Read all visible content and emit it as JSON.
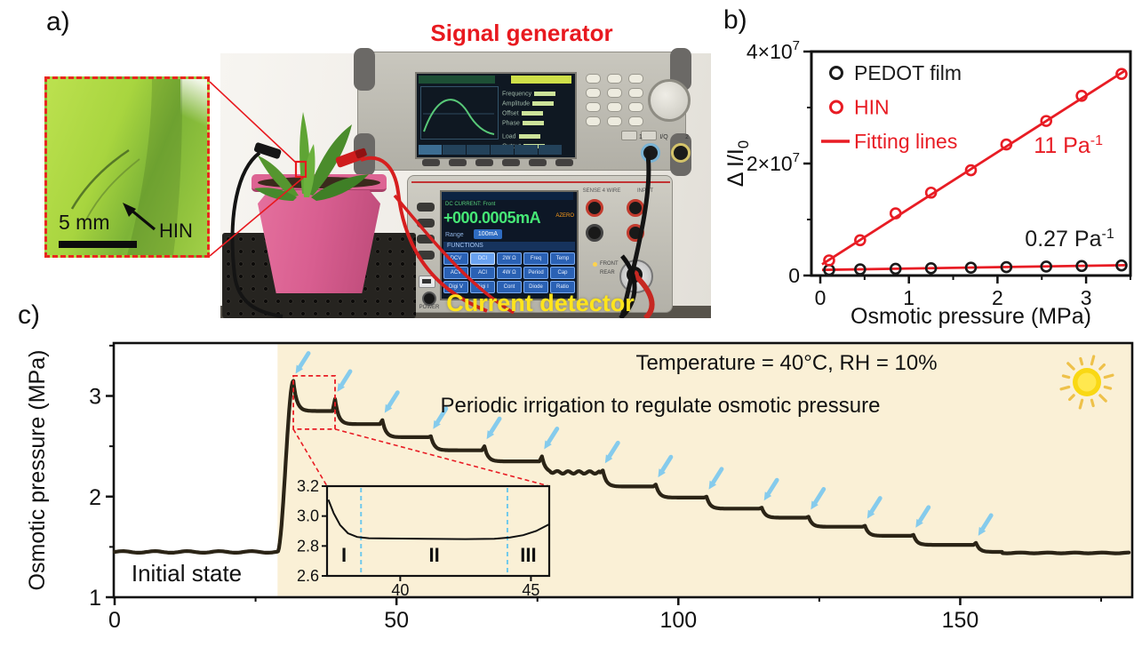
{
  "colors": {
    "red": "#e81c24",
    "cream": "#faf0d6",
    "curve": "#2b2416",
    "arrow": "#85cbec",
    "inset_divider": "#6fc9ec",
    "sun_disk": "#f9d814",
    "sun_rays": "#eec14a",
    "yellow_label": "#ffe41c"
  },
  "panel_a": {
    "label": "a)",
    "signal_generator_label": "Signal generator",
    "current_detector_label": "Current detector",
    "inset": {
      "scale_bar": "5 mm",
      "annotation": "HIN"
    },
    "generator": {
      "screen_params": [
        "Frequency",
        "Amplitude",
        "Offset",
        "Phase"
      ],
      "screen_params2": [
        "Load",
        "Output"
      ],
      "jack_labels": [
        "1",
        "I/Q",
        "2"
      ]
    },
    "multimeter": {
      "status_mode": "DC CURRENT: Front",
      "reading": "+000.0005mA",
      "azero": "AZERO",
      "range_label": "Range",
      "range_value": "100mA",
      "functions_title": "FUNCTIONS",
      "buttons": [
        [
          "DCV",
          "DCI",
          "2W Ω",
          "Freq",
          "Temp"
        ],
        [
          "ACV",
          "ACI",
          "4W Ω",
          "Period",
          "Cap"
        ],
        [
          "Digi V",
          "Digi I",
          "Cont",
          "Diode",
          "Ratio"
        ]
      ],
      "active_button": "DCI",
      "jack_labels": [
        "SENSE 4 WIRE",
        "INPUT"
      ],
      "front_rear": [
        "FRONT",
        "REAR"
      ],
      "power_label": "POWER"
    }
  },
  "panel_b": {
    "label": "b)"
  },
  "panel_c": {
    "label": "c)"
  },
  "chart_data": [
    {
      "id": "panel_b",
      "type": "scatter",
      "xlabel": "Osmotic pressure (MPa)",
      "ylabel": "ΔI/I0",
      "ylabel_rich": [
        {
          "t": "Δ I/I"
        },
        {
          "sub": true,
          "t": "0"
        }
      ],
      "xlim": [
        0,
        3.5
      ],
      "ylim": [
        0,
        40000000.0
      ],
      "xticks": [
        0,
        1,
        2,
        3
      ],
      "xticks_minor": [
        0.5,
        1.5,
        2.5,
        3.5
      ],
      "yticks": [
        {
          "v": 0,
          "t": "0"
        },
        {
          "v": 20000000.0,
          "t": "2×10",
          "sup": "7"
        },
        {
          "v": 40000000.0,
          "t": "4×10",
          "sup": "7"
        }
      ],
      "yticks_minor": [
        10000000.0,
        30000000.0
      ],
      "legend": [
        {
          "label": "PEDOT film",
          "color": "#1a1a1a",
          "marker": "circle"
        },
        {
          "label": "HIN",
          "color": "#e81c24",
          "marker": "circle"
        },
        {
          "label": "Fitting lines",
          "color": "#e81c24",
          "marker": "line"
        }
      ],
      "series": [
        {
          "name": "PEDOT film",
          "color": "#1a1a1a",
          "x": [
            0.1,
            0.45,
            0.85,
            1.25,
            1.7,
            2.1,
            2.55,
            2.95,
            3.4
          ],
          "y": [
            1000000.0,
            1100000.0,
            1200000.0,
            1300000.0,
            1400000.0,
            1500000.0,
            1600000.0,
            1700000.0,
            1800000.0
          ]
        },
        {
          "name": "HIN",
          "color": "#e81c24",
          "x": [
            0.1,
            0.45,
            0.85,
            1.25,
            1.7,
            2.1,
            2.55,
            2.95,
            3.4
          ],
          "y": [
            2700000.0,
            6300000.0,
            11100000.0,
            14800000.0,
            18800000.0,
            23400000.0,
            27600000.0,
            32100000.0,
            36000000.0
          ]
        }
      ],
      "fit_lines": [
        {
          "name": "HIN fit",
          "slope_label": "11 Pa⁻¹",
          "x1": 0.02,
          "y1": 2000000.0,
          "x2": 3.45,
          "y2": 36700000.0
        },
        {
          "name": "PEDOT fit",
          "slope_label": "0.27 Pa⁻¹",
          "x1": 0.02,
          "y1": 1000000.0,
          "x2": 3.45,
          "y2": 1850000.0
        }
      ],
      "annotations": [
        {
          "t": "11 Pa",
          "sup": "-1",
          "color": "#e81c24",
          "x": 2.41,
          "y": 21900000.0
        },
        {
          "t": "0.27 Pa",
          "sup": "-1",
          "color": "#1a1a1a",
          "x": 2.31,
          "y": 5200000.0
        }
      ]
    },
    {
      "id": "panel_c_main",
      "type": "line",
      "ylabel": "Osmotic pressure (MPa)",
      "xlim": [
        0,
        180.5
      ],
      "ylim": [
        1,
        3.53
      ],
      "xticks": [
        0,
        50,
        100,
        150
      ],
      "xticks_minor": [
        25,
        75,
        125,
        175
      ],
      "yticks": [
        1,
        2,
        3
      ],
      "yticks_minor": [
        1.5,
        2.5,
        3.5
      ],
      "baseline_value": 1.45,
      "baseline_label": "Initial state",
      "shading_start_x": 28.9,
      "annotation_conditions": "Temperature = 40°C, RH = 10%",
      "annotation_process": "Periodic irrigation to regulate osmotic pressure",
      "irrigation_events": [
        {
          "t": 31.7,
          "peak": 3.15,
          "settle": 2.85
        },
        {
          "t": 39.1,
          "peak": 2.97,
          "settle": 2.72
        },
        {
          "t": 47.5,
          "peak": 2.76,
          "settle": 2.59
        },
        {
          "t": 56.1,
          "peak": 2.6,
          "settle": 2.46
        },
        {
          "t": 65.6,
          "peak": 2.5,
          "settle": 2.35
        },
        {
          "t": 75.8,
          "peak": 2.4,
          "settle": 2.24
        },
        {
          "t": 86.6,
          "peak": 2.26,
          "settle": 2.1
        },
        {
          "t": 96.0,
          "peak": 2.12,
          "settle": 1.99
        },
        {
          "t": 105.0,
          "peak": 2.0,
          "settle": 1.88
        },
        {
          "t": 114.8,
          "peak": 1.89,
          "settle": 1.79
        },
        {
          "t": 123.1,
          "peak": 1.8,
          "settle": 1.7
        },
        {
          "t": 133.1,
          "peak": 1.71,
          "settle": 1.61
        },
        {
          "t": 141.7,
          "peak": 1.62,
          "settle": 1.52
        },
        {
          "t": 152.8,
          "peak": 1.54,
          "settle": 1.45
        }
      ],
      "tail_value": 1.44
    },
    {
      "id": "panel_c_inset",
      "type": "line",
      "xlim": [
        37.2,
        45.7
      ],
      "ylim": [
        2.6,
        3.2
      ],
      "xticks": [
        40,
        45
      ],
      "yticks": [
        2.6,
        2.8,
        3.0,
        3.2
      ],
      "points": [
        [
          37.25,
          3.11
        ],
        [
          37.45,
          3.02
        ],
        [
          37.7,
          2.94
        ],
        [
          38.0,
          2.885
        ],
        [
          38.35,
          2.86
        ],
        [
          38.8,
          2.852
        ],
        [
          39.6,
          2.85
        ],
        [
          41.0,
          2.848
        ],
        [
          42.5,
          2.846
        ],
        [
          43.6,
          2.848
        ],
        [
          44.2,
          2.857
        ],
        [
          44.7,
          2.872
        ],
        [
          45.2,
          2.9
        ],
        [
          45.7,
          2.945
        ]
      ],
      "dividers": [
        38.5,
        44.1
      ],
      "region_labels": [
        "I",
        "II",
        "III"
      ]
    }
  ]
}
